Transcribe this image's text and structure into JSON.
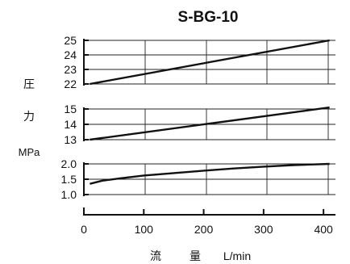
{
  "chart_data": {
    "type": "line",
    "title": "S-BG-10",
    "xlabel_parts": [
      "流",
      "量",
      "L/min"
    ],
    "ylabel_parts": [
      "圧",
      "力",
      "MPa"
    ],
    "x_ticks": [
      "0",
      "100",
      "200",
      "300",
      "400"
    ],
    "xlim": [
      0,
      420
    ],
    "grid": true,
    "panels": [
      {
        "ylim": [
          22,
          25
        ],
        "y_ticks": [
          "22",
          "23",
          "24",
          "25"
        ],
        "series": [
          {
            "x": [
              10,
              410
            ],
            "y": [
              22.0,
              25.0
            ]
          }
        ]
      },
      {
        "ylim": [
          13,
          15
        ],
        "y_ticks": [
          "13",
          "14",
          "15"
        ],
        "series": [
          {
            "x": [
              10,
              410
            ],
            "y": [
              13.0,
              15.1
            ]
          }
        ]
      },
      {
        "ylim": [
          1.0,
          2.0
        ],
        "y_ticks": [
          "1.0",
          "1.5",
          "2.0"
        ],
        "series": [
          {
            "x": [
              10,
              30,
              60,
              100,
              150,
              200,
              250,
              300,
              350,
              410
            ],
            "y": [
              1.35,
              1.45,
              1.53,
              1.62,
              1.7,
              1.78,
              1.85,
              1.91,
              1.96,
              2.0
            ]
          }
        ]
      }
    ]
  }
}
